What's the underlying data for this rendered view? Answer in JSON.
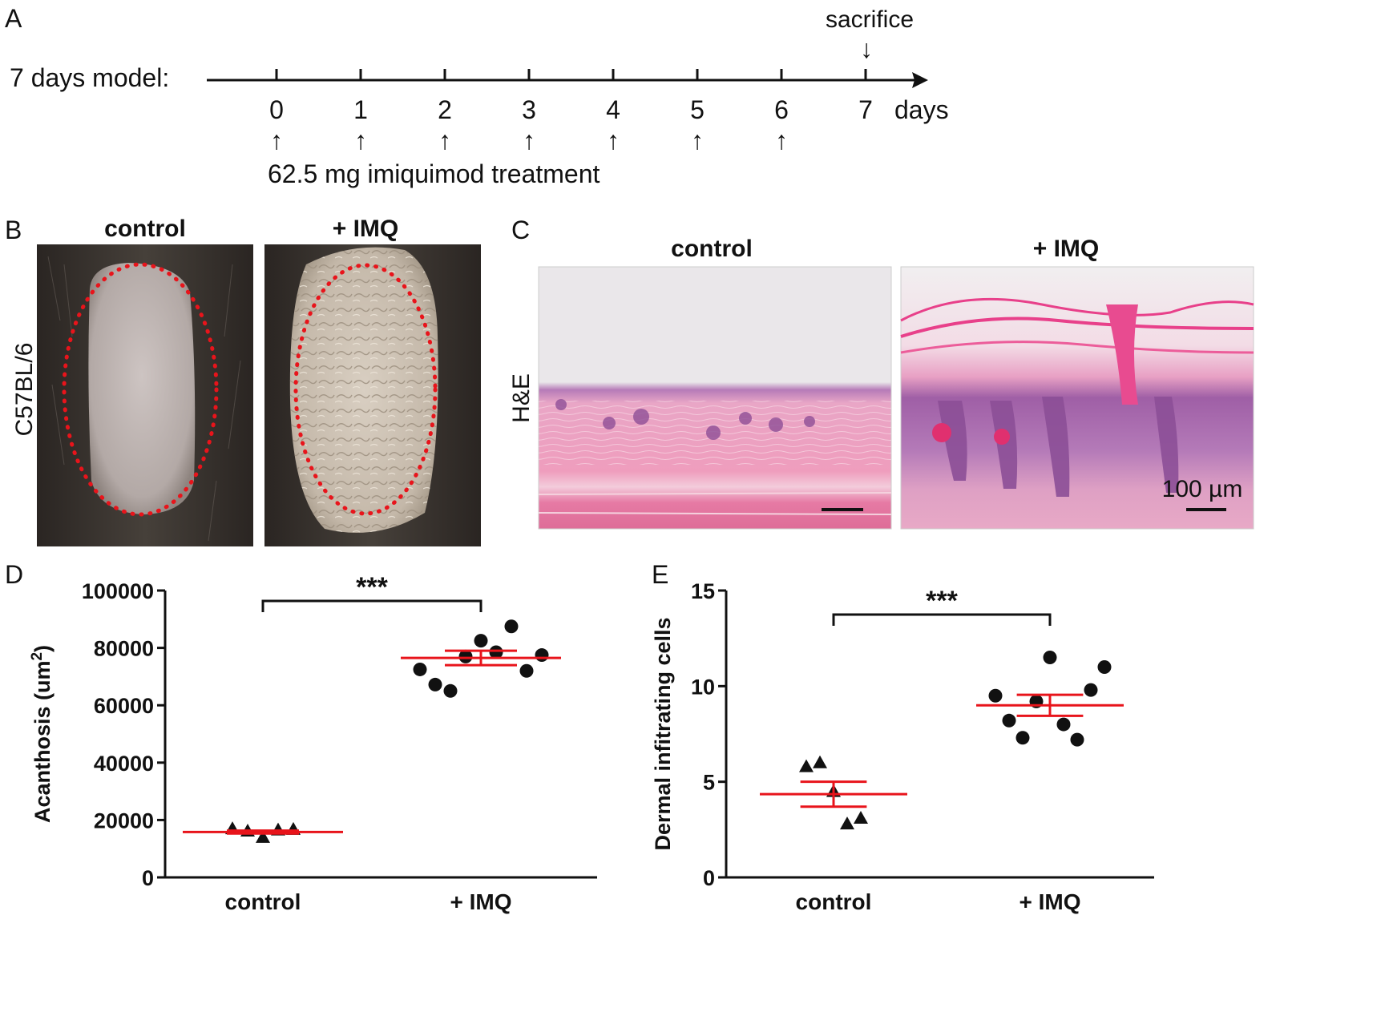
{
  "panel_labels": {
    "a": "A",
    "b": "B",
    "c": "C",
    "d": "D",
    "e": "E"
  },
  "timeline": {
    "model_label": "7 days model:",
    "days": [
      "0",
      "1",
      "2",
      "3",
      "4",
      "5",
      "6",
      "7"
    ],
    "unit": "days",
    "sacrifice_label": "sacrifice",
    "arrow_glyph": "↑",
    "down_arrow_glyph": "↓",
    "treatment_label": "62.5 mg imiquimod treatment"
  },
  "panel_b": {
    "col_control": "control",
    "col_imq": "+ IMQ",
    "row_label": "C57BL/6",
    "outline_color": "#e8141b"
  },
  "panel_c": {
    "col_control": "control",
    "col_imq": "+ IMQ",
    "row_label": "H&E",
    "scale_bar_label": "100 µm"
  },
  "chart_data": [
    {
      "type": "scatter",
      "panel": "D",
      "ylabel": "Acanthosis (um",
      "ylabel_sup": "2",
      "ylabel_close": ")",
      "ylim": [
        0,
        100000
      ],
      "yticks": [
        0,
        20000,
        40000,
        60000,
        80000,
        100000
      ],
      "ytick_labels": [
        "0",
        "20000",
        "40000",
        "60000",
        "80000",
        "100000"
      ],
      "categories": [
        "control",
        "+ IMQ"
      ],
      "significance": "***",
      "summary_color": "#e8141b",
      "series": [
        {
          "category": "control",
          "marker": "triangle",
          "values": [
            17000,
            16200,
            14000,
            16600,
            16800
          ],
          "mean": 15800,
          "sem": 500
        },
        {
          "category": "+ IMQ",
          "marker": "circle",
          "values": [
            72500,
            67200,
            65000,
            77000,
            82500,
            78500,
            87500,
            72000,
            77500
          ],
          "mean": 76500,
          "sem": 2500
        }
      ]
    },
    {
      "type": "scatter",
      "panel": "E",
      "ylabel": "Dermal infitrating cells",
      "ylim": [
        0,
        15
      ],
      "yticks": [
        0,
        5,
        10,
        15
      ],
      "ytick_labels": [
        "0",
        "5",
        "10",
        "15"
      ],
      "categories": [
        "control",
        "+ IMQ"
      ],
      "significance": "***",
      "summary_color": "#e8141b",
      "series": [
        {
          "category": "control",
          "marker": "triangle",
          "values": [
            5.8,
            6.0,
            4.5,
            2.8,
            3.1
          ],
          "mean": 4.35,
          "sem": 0.65
        },
        {
          "category": "+ IMQ",
          "marker": "circle",
          "values": [
            9.5,
            8.2,
            7.3,
            9.2,
            11.5,
            8.0,
            7.2,
            9.8,
            11.0
          ],
          "mean": 9.0,
          "sem": 0.55
        }
      ]
    }
  ]
}
